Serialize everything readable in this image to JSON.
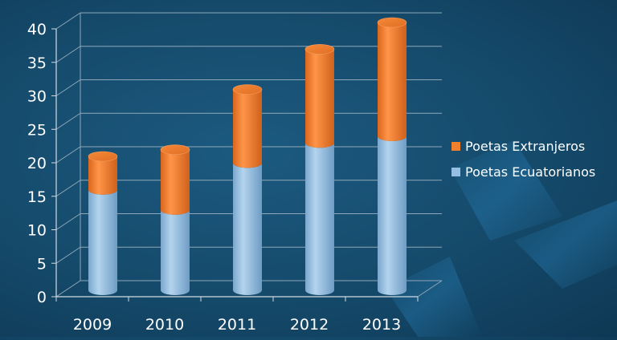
{
  "chart_data": {
    "type": "bar",
    "stacked": true,
    "style": "3d-cylinder",
    "title": "",
    "xlabel": "",
    "ylabel": "",
    "categories": [
      "2009",
      "2010",
      "2011",
      "2012",
      "2013"
    ],
    "ylim": [
      0,
      40
    ],
    "yticks": [
      0,
      5,
      10,
      15,
      20,
      25,
      30,
      35,
      40
    ],
    "grid": true,
    "legend_position": "right",
    "series": [
      {
        "name": "Poetas Ecuatorianos",
        "values": [
          15,
          12,
          19,
          22,
          23
        ],
        "color": "#94bfe2"
      },
      {
        "name": "Poetas Extranjeros",
        "values": [
          5,
          9,
          11,
          14,
          17
        ],
        "color": "#f07f2e"
      }
    ],
    "legend": [
      {
        "name": "Poetas Extranjeros",
        "color": "#f07f2e"
      },
      {
        "name": "Poetas Ecuatorianos",
        "color": "#94bfe2"
      }
    ]
  }
}
